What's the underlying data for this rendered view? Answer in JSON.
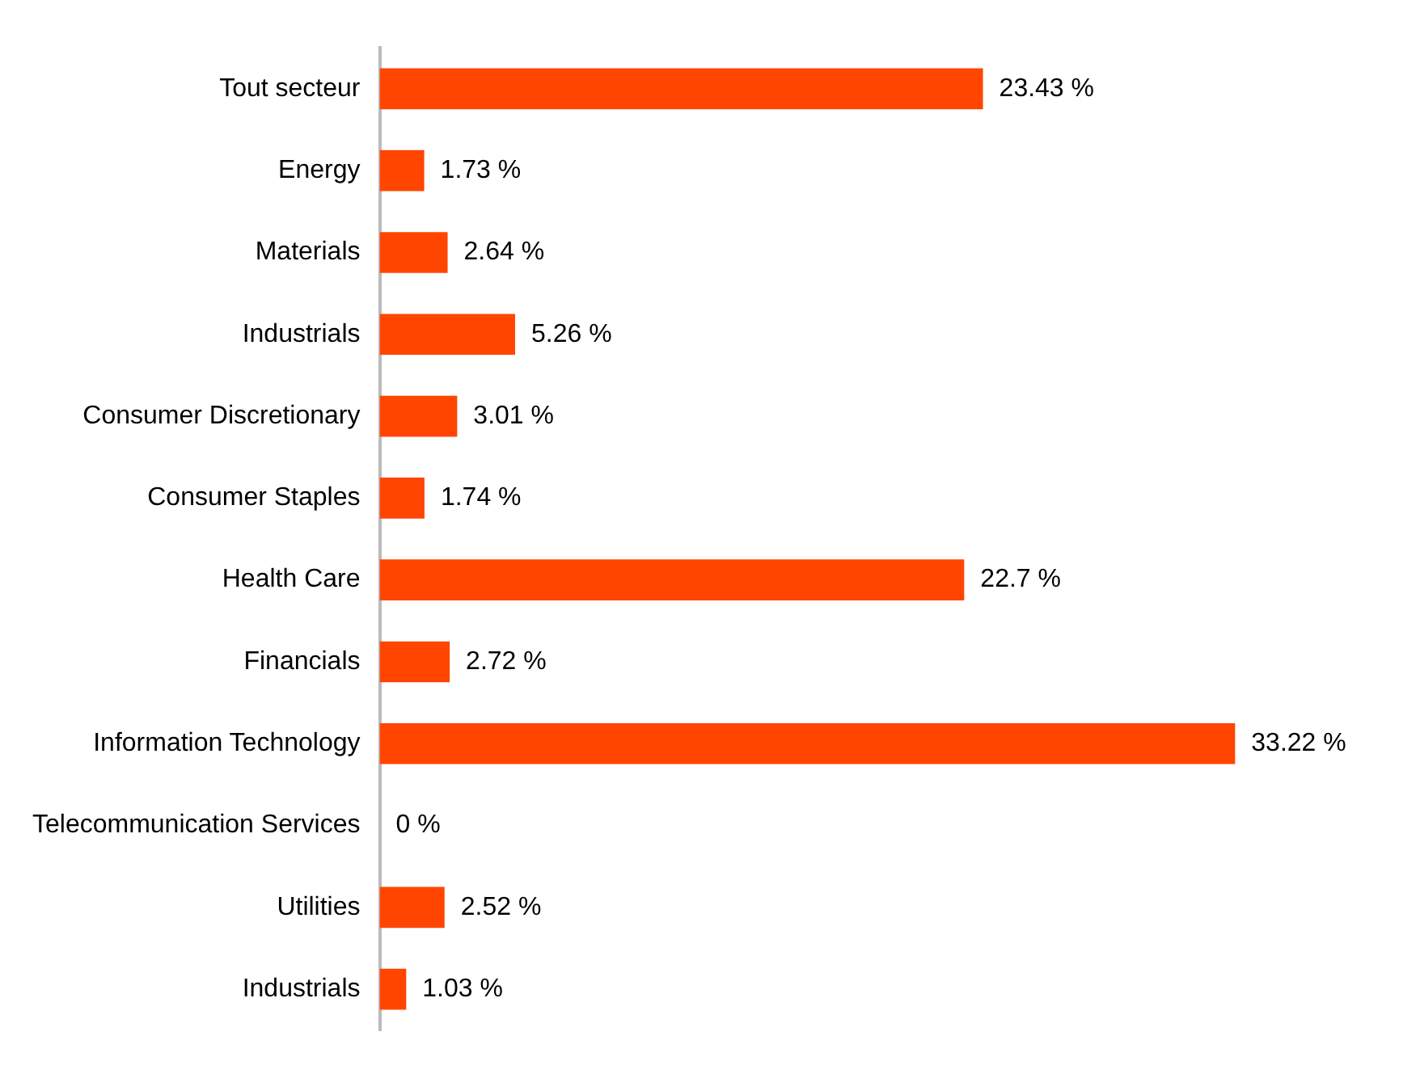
{
  "chart_data": {
    "type": "bar",
    "orientation": "horizontal",
    "categories": [
      "Tout secteur",
      "Energy",
      "Materials",
      "Industrials",
      "Consumer Discretionary",
      "Consumer Staples",
      "Health Care",
      "Financials",
      "Information Technology",
      "Telecommunication Services",
      "Utilities",
      "Industrials"
    ],
    "values": [
      23.43,
      1.73,
      2.64,
      5.26,
      3.01,
      1.74,
      22.7,
      2.72,
      33.22,
      0,
      2.52,
      1.03
    ],
    "value_labels": [
      "23.43 %",
      "1.73 %",
      "2.64 %",
      "5.26 %",
      "3.01 %",
      "1.74 %",
      "22.7 %",
      "2.72 %",
      "33.22 %",
      "0 %",
      "2.52 %",
      "1.03 %"
    ],
    "color": "#ff4500",
    "grid": false,
    "legend": false
  }
}
